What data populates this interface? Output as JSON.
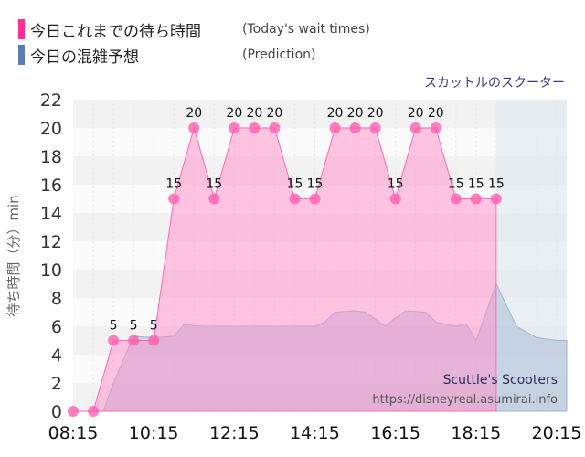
{
  "legend": {
    "today_label": "今日これまでの待ち時間",
    "today_sub": "(Today's wait times)",
    "today_color": "#ff2d95",
    "prediction_label": "今日の混雑予想",
    "prediction_sub": "(Prediction)",
    "prediction_color": "#5b7db1"
  },
  "attraction_name": "スカットルのスクーター",
  "watermark": {
    "name": "Scuttle's Scooters",
    "url": "https://disneyreal.asumirai.info"
  },
  "chart_data": {
    "type": "area",
    "title": "",
    "xlabel": "",
    "ylabel": "待ち時間（分）min",
    "ylim": [
      0,
      22
    ],
    "yticks": [
      0,
      2,
      4,
      6,
      8,
      10,
      12,
      14,
      16,
      18,
      20,
      22
    ],
    "xlim": [
      "08:15",
      "20:30"
    ],
    "xticks": [
      "08:15",
      "10:15",
      "12:15",
      "14:15",
      "16:15",
      "18:15",
      "20:15"
    ],
    "grid": true,
    "series": [
      {
        "key": "today",
        "color": "#ff69b4",
        "x": [
          "08:15",
          "08:45",
          "09:15",
          "09:45",
          "10:15",
          "10:45",
          "11:15",
          "11:45",
          "12:15",
          "12:45",
          "13:15",
          "13:45",
          "14:15",
          "14:45",
          "15:15",
          "15:45",
          "16:15",
          "16:45",
          "17:15",
          "17:45",
          "18:15",
          "18:45"
        ],
        "values": [
          0,
          0,
          5,
          5,
          5,
          15,
          20,
          15,
          20,
          20,
          20,
          15,
          15,
          20,
          20,
          20,
          15,
          20,
          20,
          15,
          15,
          15
        ],
        "labels_shown": [
          false,
          false,
          true,
          true,
          true,
          true,
          true,
          true,
          true,
          true,
          true,
          true,
          true,
          true,
          true,
          true,
          true,
          true,
          true,
          true,
          true,
          true
        ]
      },
      {
        "key": "prediction",
        "color": "#5b7db1",
        "x": [
          "08:15",
          "08:45",
          "09:00",
          "09:15",
          "09:45",
          "10:15",
          "10:45",
          "11:00",
          "11:30",
          "12:15",
          "12:45",
          "13:15",
          "13:45",
          "14:15",
          "14:30",
          "14:45",
          "15:15",
          "15:30",
          "16:00",
          "16:15",
          "16:30",
          "17:00",
          "17:15",
          "17:45",
          "18:00",
          "18:15",
          "18:30",
          "18:45",
          "19:00",
          "19:15",
          "19:45",
          "20:15",
          "20:30"
        ],
        "values": [
          0,
          0,
          0,
          2,
          5.3,
          5.2,
          5.3,
          6.1,
          6,
          6,
          6,
          6,
          6,
          6,
          6.3,
          7,
          7.1,
          7,
          6,
          6.6,
          7.1,
          7,
          6.3,
          6,
          6.2,
          5,
          7,
          9,
          7.5,
          6,
          5.2,
          5,
          5
        ]
      }
    ],
    "forecast_region_start": "18:45"
  }
}
